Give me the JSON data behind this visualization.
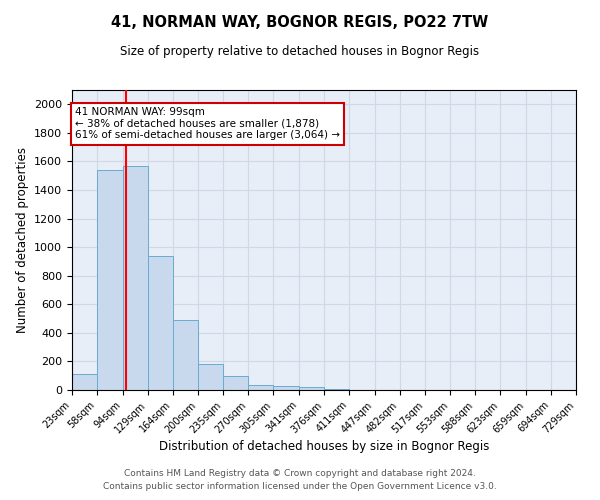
{
  "title1": "41, NORMAN WAY, BOGNOR REGIS, PO22 7TW",
  "title2": "Size of property relative to detached houses in Bognor Regis",
  "xlabel": "Distribution of detached houses by size in Bognor Regis",
  "ylabel": "Number of detached properties",
  "bar_color": "#c8d8ed",
  "bar_edge_color": "#6aabcf",
  "background_color": "#e8eef7",
  "grid_color": "#d0d8e8",
  "red_line_x": 99,
  "annotation_line1": "41 NORMAN WAY: 99sqm",
  "annotation_line2": "← 38% of detached houses are smaller (1,878)",
  "annotation_line3": "61% of semi-detached houses are larger (3,064) →",
  "annotation_box_color": "#ffffff",
  "annotation_border_color": "#cc0000",
  "bin_edges": [
    23,
    58,
    94,
    129,
    164,
    200,
    235,
    270,
    305,
    341,
    376,
    411,
    447,
    482,
    517,
    553,
    588,
    623,
    659,
    694,
    729
  ],
  "bar_heights": [
    110,
    1540,
    1570,
    940,
    490,
    180,
    100,
    35,
    30,
    20,
    5,
    2,
    2,
    1,
    1,
    1,
    1,
    1,
    1,
    1
  ],
  "ylim": [
    0,
    2100
  ],
  "yticks": [
    0,
    200,
    400,
    600,
    800,
    1000,
    1200,
    1400,
    1600,
    1800,
    2000
  ],
  "footer1": "Contains HM Land Registry data © Crown copyright and database right 2024.",
  "footer2": "Contains public sector information licensed under the Open Government Licence v3.0."
}
